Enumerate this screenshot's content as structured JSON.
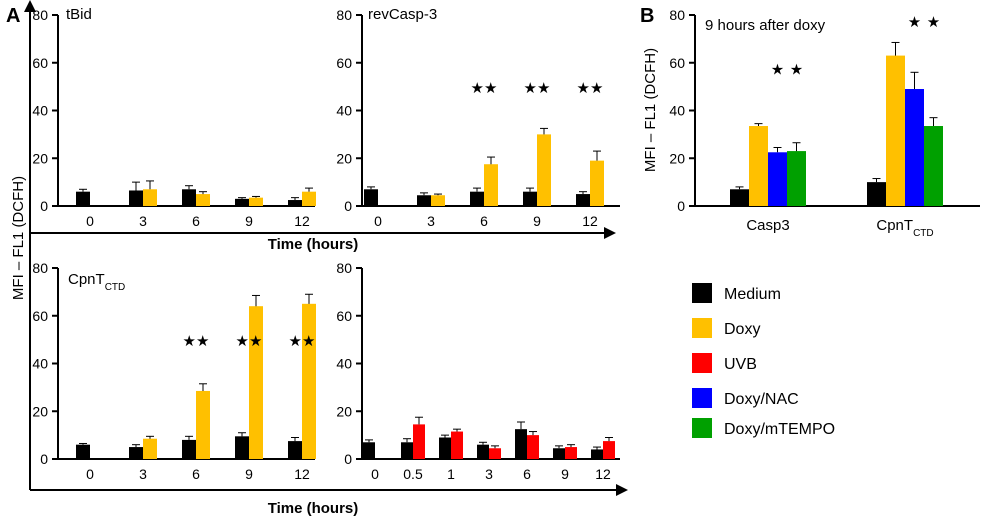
{
  "figure": {
    "panel_a_label": "A",
    "panel_b_label": "B",
    "ylabel": "MFI – FL1 (DCFH)",
    "xlabel_mid": "Time (hours)",
    "xlabel_bottom": "Time (hours)",
    "star_marker": "★★",
    "single_star": "★"
  },
  "colors": {
    "Medium": "#000000",
    "Doxy": "#FFC000",
    "UVB": "#FF0000",
    "Doxy/NAC": "#0000FF",
    "Doxy/mTEMPO": "#00A000"
  },
  "legend": {
    "items": [
      {
        "label": "Medium",
        "color": "#000000"
      },
      {
        "label": "Doxy",
        "color": "#FFC000"
      },
      {
        "label": "UVB",
        "color": "#FF0000"
      },
      {
        "label": "Doxy/NAC",
        "color": "#0000FF"
      },
      {
        "label": "Doxy/mTEMPO",
        "color": "#00A000"
      }
    ]
  },
  "chart_data": [
    {
      "id": "tbid",
      "type": "bar",
      "title": "tBid",
      "categories": [
        "0",
        "3",
        "6",
        "9",
        "12"
      ],
      "ylim": [
        0,
        80
      ],
      "yticks": [
        0,
        20,
        40,
        60,
        80
      ],
      "xlabel": "Time (hours)",
      "ylabel": "MFI – FL1 (DCFH)",
      "series": [
        {
          "name": "Medium",
          "values": [
            6,
            6.5,
            7,
            3,
            2.5
          ],
          "errors": [
            1,
            3.5,
            1.5,
            0.5,
            1
          ]
        },
        {
          "name": "Doxy",
          "values": [
            null,
            7,
            5,
            3.5,
            6
          ],
          "errors": [
            null,
            3.5,
            1,
            0.5,
            1.5
          ]
        }
      ],
      "significance": []
    },
    {
      "id": "revcasp3",
      "type": "bar",
      "title": "revCasp-3",
      "categories": [
        "0",
        "3",
        "6",
        "9",
        "12"
      ],
      "ylim": [
        0,
        80
      ],
      "yticks": [
        0,
        20,
        40,
        60,
        80
      ],
      "xlabel": "Time (hours)",
      "ylabel": "MFI – FL1 (DCFH)",
      "series": [
        {
          "name": "Medium",
          "values": [
            7,
            4.5,
            6,
            6,
            5
          ],
          "errors": [
            1,
            1,
            1.5,
            1.5,
            1
          ]
        },
        {
          "name": "Doxy",
          "values": [
            null,
            4.5,
            17.5,
            30,
            19
          ],
          "errors": [
            null,
            0.5,
            3,
            2.5,
            4
          ]
        }
      ],
      "significance": [
        "6",
        "9",
        "12"
      ]
    },
    {
      "id": "cpnt",
      "type": "bar",
      "title": "CpnT",
      "title_sub": "CTD",
      "categories": [
        "0",
        "3",
        "6",
        "9",
        "12"
      ],
      "ylim": [
        0,
        80
      ],
      "yticks": [
        0,
        20,
        40,
        60,
        80
      ],
      "xlabel": "Time (hours)",
      "ylabel": "MFI – FL1 (DCFH)",
      "series": [
        {
          "name": "Medium",
          "values": [
            6,
            5,
            8,
            9.5,
            7.5
          ],
          "errors": [
            0.5,
            1,
            1.5,
            1.5,
            1.5
          ]
        },
        {
          "name": "Doxy",
          "values": [
            null,
            8.5,
            28.5,
            64,
            65
          ],
          "errors": [
            null,
            1,
            3,
            4.5,
            4
          ]
        }
      ],
      "significance": [
        "6",
        "9",
        "12"
      ]
    },
    {
      "id": "uvb",
      "type": "bar",
      "title": "",
      "categories": [
        "0",
        "0.5",
        "1",
        "3",
        "6",
        "9",
        "12"
      ],
      "ylim": [
        0,
        80
      ],
      "yticks": [
        0,
        20,
        40,
        60,
        80
      ],
      "xlabel": "Time (hours)",
      "ylabel": "MFI – FL1 (DCFH)",
      "series": [
        {
          "name": "Medium",
          "values": [
            7,
            7,
            9,
            6,
            12.5,
            4.5,
            4
          ],
          "errors": [
            1,
            1.5,
            1,
            1,
            3,
            1,
            1
          ]
        },
        {
          "name": "UVB",
          "values": [
            null,
            14.5,
            11.5,
            4.5,
            10,
            5,
            7.5
          ],
          "errors": [
            null,
            3,
            1,
            1,
            1.5,
            1,
            1.5
          ]
        }
      ],
      "significance": []
    },
    {
      "id": "nine-hours",
      "type": "bar",
      "title": "9 hours after doxy",
      "categories": [
        "Casp3",
        "CpnT"
      ],
      "category_subs": [
        "",
        "CTD"
      ],
      "ylim": [
        0,
        80
      ],
      "yticks": [
        0,
        20,
        40,
        60,
        80
      ],
      "ylabel": "MFI – FL1 (DCFH)",
      "series": [
        {
          "name": "Medium",
          "values": [
            7,
            10
          ],
          "errors": [
            1,
            1.5
          ]
        },
        {
          "name": "Doxy",
          "values": [
            33.5,
            63
          ],
          "errors": [
            1,
            5.5
          ]
        },
        {
          "name": "Doxy/NAC",
          "values": [
            22.5,
            49
          ],
          "errors": [
            2,
            7
          ]
        },
        {
          "name": "Doxy/mTEMPO",
          "values": [
            23,
            33.5
          ],
          "errors": [
            3.5,
            3.5
          ]
        }
      ],
      "significance_single": [
        [
          "Doxy/NAC",
          "Doxy/mTEMPO"
        ],
        [
          "Doxy/NAC",
          "Doxy/mTEMPO"
        ]
      ]
    }
  ]
}
